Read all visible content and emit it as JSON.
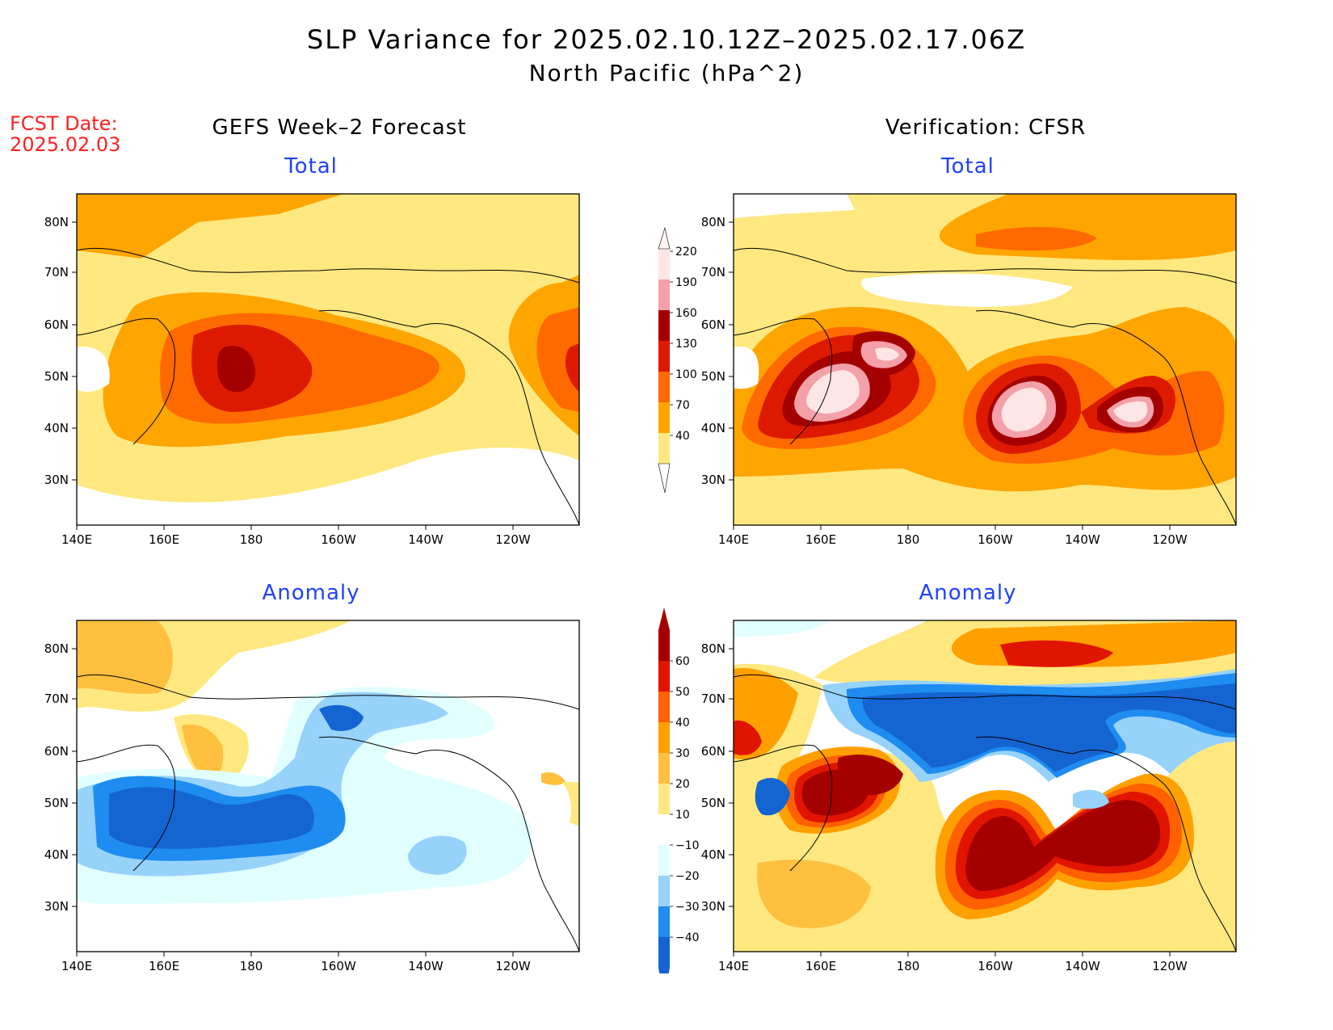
{
  "title": "SLP Variance for 2025.02.10.12Z–2025.02.17.06Z",
  "subtitle": "North Pacific (hPa^2)",
  "fcst": {
    "label": "FCST Date:",
    "date": "2025.02.03"
  },
  "left_heading": "GEFS Week–2 Forecast",
  "right_heading": "Verification: CFSR",
  "panels": {
    "tl": {
      "title": "Total"
    },
    "tr": {
      "title": "Total"
    },
    "bl": {
      "title": "Anomaly"
    },
    "br": {
      "title": "Anomaly"
    }
  },
  "axes": {
    "lat_labels": [
      "80N",
      "70N",
      "60N",
      "50N",
      "40N",
      "30N"
    ],
    "lon_labels": [
      "140E",
      "160E",
      "180",
      "160W",
      "140W",
      "120W"
    ]
  },
  "colorbars": {
    "total": {
      "levels": [
        "40",
        "70",
        "100",
        "130",
        "160",
        "190",
        "220"
      ],
      "colors": [
        "#ffe880",
        "#ffa500",
        "#ff6a00",
        "#dd1a00",
        "#a50000",
        "#f4a0a8",
        "#ffe6e6"
      ]
    },
    "anomaly": {
      "levels": [
        "−40",
        "−30",
        "−20",
        "−10",
        "10",
        "20",
        "30",
        "40",
        "50",
        "60"
      ],
      "colors": [
        "#1464d2",
        "#1e8cf0",
        "#96d2fa",
        "#e1ffff",
        "#ffffff",
        "#ffe880",
        "#ffc040",
        "#ffa000",
        "#ff6000",
        "#e11400",
        "#a50000"
      ]
    }
  },
  "chart_data": [
    {
      "type": "heatmap",
      "title": "Total",
      "source": "GEFS Week–2 Forecast",
      "levels": [
        40,
        70,
        100,
        130,
        160,
        190,
        220
      ],
      "features": [
        {
          "lon": 175,
          "lat": 52,
          "value": 165
        },
        {
          "lon": 175,
          "lat": 48,
          "value": 130
        },
        {
          "lon": 200,
          "lat": 52,
          "value": 110
        },
        {
          "lon": 245,
          "lat": 52,
          "value": 125
        },
        {
          "lon": 200,
          "lat": 72,
          "value": 50
        }
      ]
    },
    {
      "type": "heatmap",
      "title": "Total",
      "source": "Verification: CFSR",
      "levels": [
        40,
        70,
        100,
        130,
        160,
        190,
        220
      ],
      "features": [
        {
          "lon": 160,
          "lat": 46,
          "value": 225
        },
        {
          "lon": 172,
          "lat": 53,
          "value": 200
        },
        {
          "lon": 200,
          "lat": 45,
          "value": 225
        },
        {
          "lon": 230,
          "lat": 43,
          "value": 225
        },
        {
          "lon": 207,
          "lat": 76,
          "value": 105
        }
      ]
    },
    {
      "type": "heatmap",
      "title": "Anomaly",
      "source": "GEFS Week–2 Forecast",
      "levels": [
        -40,
        -30,
        -20,
        -10,
        10,
        20,
        30,
        40,
        50,
        60
      ],
      "features": [
        {
          "lon": 160,
          "lat": 44,
          "value": -45
        },
        {
          "lon": 180,
          "lat": 44,
          "value": -40
        },
        {
          "lon": 192,
          "lat": 64,
          "value": -30
        },
        {
          "lon": 215,
          "lat": 38,
          "value": -25
        },
        {
          "lon": 172,
          "lat": 61,
          "value": 25
        }
      ]
    },
    {
      "type": "heatmap",
      "title": "Anomaly",
      "source": "Verification: CFSR",
      "levels": [
        -40,
        -30,
        -20,
        -10,
        10,
        20,
        30,
        40,
        50,
        60
      ],
      "features": [
        {
          "lon": 160,
          "lat": 46,
          "value": 65
        },
        {
          "lon": 172,
          "lat": 53,
          "value": 65
        },
        {
          "lon": 202,
          "lat": 42,
          "value": 65
        },
        {
          "lon": 230,
          "lat": 44,
          "value": 65
        },
        {
          "lon": 200,
          "lat": 64,
          "value": -45
        },
        {
          "lon": 207,
          "lat": 77,
          "value": 60
        }
      ]
    }
  ]
}
